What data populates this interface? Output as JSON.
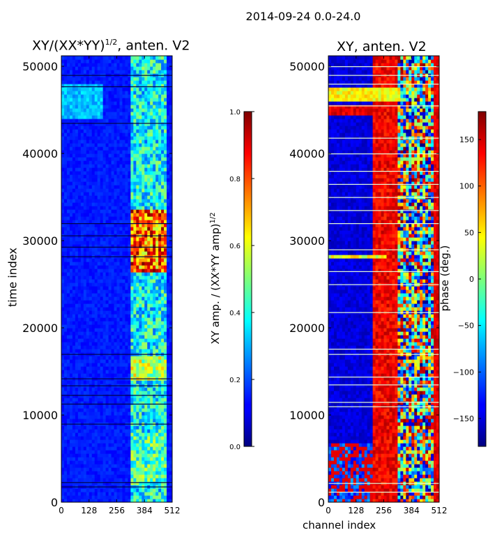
{
  "chart_data": {
    "type": "heatmap",
    "suptitle": "2014-09-24 0.0-24.0",
    "xlabel": "channel index",
    "ylabel": "time index",
    "x_ticks": [
      "0",
      "128",
      "256",
      "384",
      "512"
    ],
    "y_ticks": [
      "0",
      "10000",
      "20000",
      "30000",
      "40000",
      "50000"
    ],
    "xlim": [
      0,
      512
    ],
    "ylim": [
      0,
      51200
    ],
    "panels": [
      {
        "title_main": "XY/(XX*YY)",
        "title_sup": "1/2",
        "title_suffix": ", anten. V2",
        "colorbar_label_main": "XY amp. / (XX*YY amp)",
        "colorbar_label_sup": "1/2",
        "colorbar_ticks": [
          "0.0",
          "0.2",
          "0.4",
          "0.6",
          "0.8",
          "1.0"
        ],
        "colorbar_range": [
          0.0,
          1.0
        ]
      },
      {
        "title_main": "XY, anten. V2",
        "colorbar_label_main": "phase (deg.)",
        "colorbar_ticks": [
          "−150",
          "−100",
          "−50",
          "0",
          "50",
          "100",
          "150"
        ],
        "colorbar_values": [
          -150,
          -100,
          -50,
          0,
          50,
          100,
          150
        ],
        "colorbar_range": [
          -180,
          180
        ]
      }
    ]
  }
}
